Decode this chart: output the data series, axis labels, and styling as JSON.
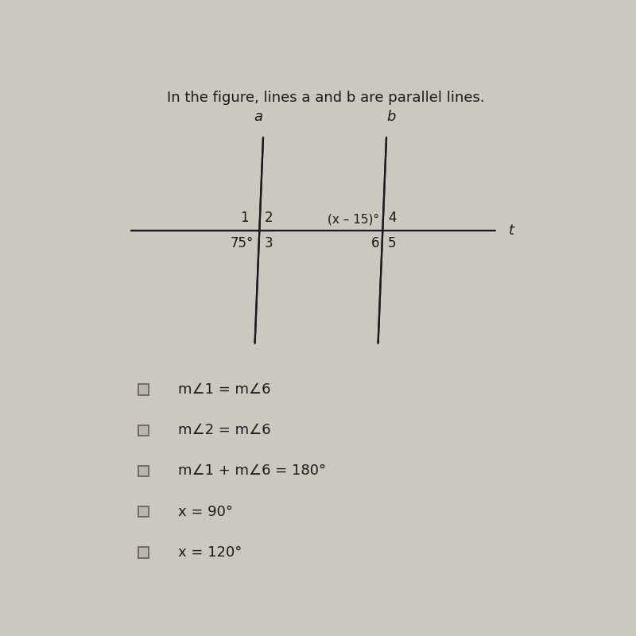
{
  "bg_color": "#ccc8c0",
  "line_color": "#1a1a1a",
  "text_color": "#1a1a1a",
  "fig_width": 8.0,
  "fig_height": 8.0,
  "dpi": 100,
  "title": "In the figure, lines a and b are parallel lines.",
  "title_fontsize": 13,
  "label_a": "a",
  "label_b": "b",
  "label_t": "t",
  "checkboxes": [
    "m∠1 = m∠6",
    "m∠2 = m∠6",
    "m∠1 + m∠6 = 180°",
    "x = 90°",
    "x = 120°"
  ]
}
